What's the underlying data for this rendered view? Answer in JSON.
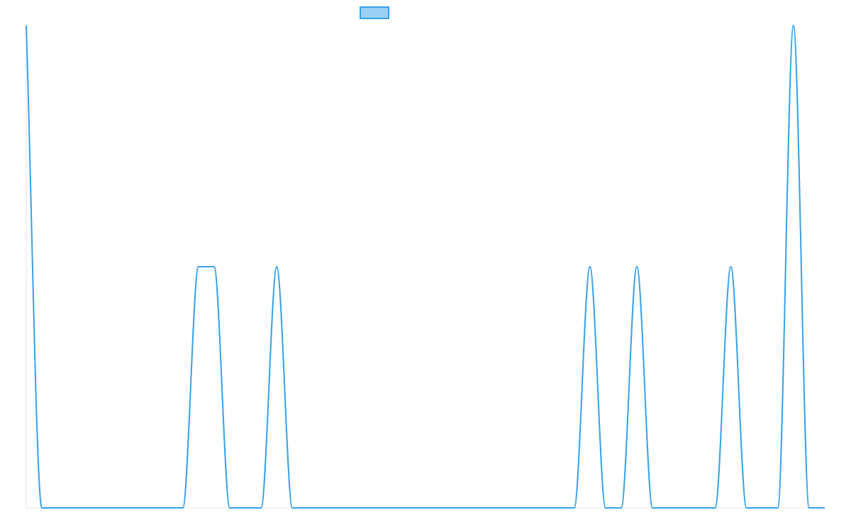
{
  "chart_data": {
    "type": "line",
    "title": "",
    "xlabel": "",
    "ylabel": "",
    "legend": {
      "placement": "top-center",
      "entries": [
        {
          "label": "",
          "color": "#36A2EB",
          "fill": "#9AD0F5"
        }
      ]
    },
    "grid": false,
    "x_ticks_shown": false,
    "y_ticks_shown": false,
    "xlim": [
      0,
      51
    ],
    "ylim": [
      0,
      2
    ],
    "x": [
      0,
      1,
      2,
      3,
      4,
      5,
      6,
      7,
      8,
      9,
      10,
      11,
      12,
      13,
      14,
      15,
      16,
      17,
      18,
      19,
      20,
      21,
      22,
      23,
      24,
      25,
      26,
      27,
      28,
      29,
      30,
      31,
      32,
      33,
      34,
      35,
      36,
      37,
      38,
      39,
      40,
      41,
      42,
      43,
      44,
      45,
      46,
      47,
      48,
      49,
      50,
      51
    ],
    "series": [
      {
        "color": "#36A2EB",
        "values": [
          2,
          0,
          0,
          0,
          0,
          0,
          0,
          0,
          0,
          0,
          0,
          1,
          1,
          0,
          0,
          0,
          1,
          0,
          0,
          0,
          0,
          0,
          0,
          0,
          0,
          0,
          0,
          0,
          0,
          0,
          0,
          0,
          0,
          0,
          0,
          0,
          1,
          0,
          0,
          1,
          0,
          0,
          0,
          0,
          0,
          1,
          0,
          0,
          0,
          2,
          0,
          0
        ]
      }
    ]
  }
}
